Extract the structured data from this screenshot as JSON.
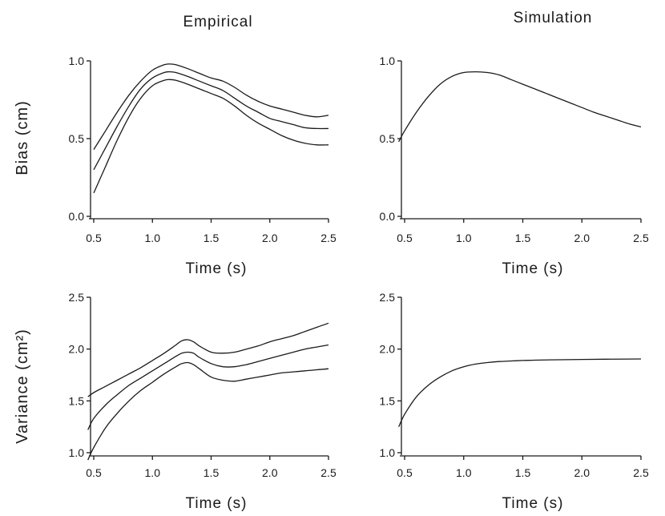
{
  "titles": {
    "left": "Empirical",
    "right": "Simulation"
  },
  "ylabels": {
    "top": "Bias (cm)",
    "bottom": "Variance (cm²)"
  },
  "chart_data": [
    {
      "type": "line",
      "xlabel": "Time (s)",
      "xlim": [
        0.5,
        2.5
      ],
      "ylim": [
        0.0,
        1.0
      ],
      "xticks": [
        "0.5",
        "1.0",
        "1.5",
        "2.0",
        "2.5"
      ],
      "yticks": [
        "0.0",
        "0.5",
        "1.0"
      ],
      "series": [
        {
          "x": [
            0.5,
            0.6,
            0.7,
            0.8,
            0.9,
            1.0,
            1.1,
            1.15,
            1.2,
            1.3,
            1.4,
            1.5,
            1.6,
            1.7,
            1.8,
            1.9,
            2.0,
            2.1,
            2.2,
            2.3,
            2.4,
            2.5
          ],
          "y": [
            0.43,
            0.55,
            0.67,
            0.78,
            0.87,
            0.94,
            0.975,
            0.98,
            0.975,
            0.95,
            0.92,
            0.89,
            0.87,
            0.83,
            0.78,
            0.74,
            0.71,
            0.69,
            0.67,
            0.65,
            0.64,
            0.65
          ]
        },
        {
          "x": [
            0.5,
            0.6,
            0.7,
            0.8,
            0.9,
            1.0,
            1.1,
            1.15,
            1.2,
            1.3,
            1.4,
            1.5,
            1.6,
            1.7,
            1.8,
            1.9,
            2.0,
            2.1,
            2.2,
            2.3,
            2.4,
            2.5
          ],
          "y": [
            0.3,
            0.44,
            0.58,
            0.71,
            0.82,
            0.89,
            0.925,
            0.93,
            0.925,
            0.9,
            0.87,
            0.84,
            0.81,
            0.76,
            0.71,
            0.67,
            0.63,
            0.61,
            0.59,
            0.57,
            0.565,
            0.565
          ]
        },
        {
          "x": [
            0.5,
            0.6,
            0.7,
            0.8,
            0.9,
            1.0,
            1.1,
            1.15,
            1.2,
            1.3,
            1.4,
            1.5,
            1.6,
            1.7,
            1.8,
            1.9,
            2.0,
            2.1,
            2.2,
            2.3,
            2.4,
            2.5
          ],
          "y": [
            0.15,
            0.32,
            0.49,
            0.64,
            0.76,
            0.84,
            0.875,
            0.88,
            0.875,
            0.85,
            0.82,
            0.79,
            0.76,
            0.71,
            0.65,
            0.6,
            0.56,
            0.52,
            0.49,
            0.47,
            0.46,
            0.46
          ]
        }
      ]
    },
    {
      "type": "line",
      "xlabel": "Time (s)",
      "xlim": [
        0.5,
        2.5
      ],
      "ylim": [
        0.0,
        1.0
      ],
      "xticks": [
        "0.5",
        "1.0",
        "1.5",
        "2.0",
        "2.5"
      ],
      "yticks": [
        "0.0",
        "0.5",
        "1.0"
      ],
      "series": [
        {
          "x": [
            0.45,
            0.5,
            0.6,
            0.7,
            0.8,
            0.9,
            1.0,
            1.1,
            1.2,
            1.3,
            1.4,
            1.5,
            1.6,
            1.7,
            1.8,
            1.9,
            2.0,
            2.1,
            2.2,
            2.3,
            2.4,
            2.5
          ],
          "y": [
            0.48,
            0.55,
            0.67,
            0.77,
            0.85,
            0.9,
            0.925,
            0.93,
            0.925,
            0.91,
            0.88,
            0.85,
            0.82,
            0.79,
            0.76,
            0.73,
            0.7,
            0.67,
            0.645,
            0.62,
            0.595,
            0.575
          ]
        }
      ]
    },
    {
      "type": "line",
      "xlabel": "Time (s)",
      "xlim": [
        0.5,
        2.5
      ],
      "ylim": [
        1.0,
        2.5
      ],
      "xticks": [
        "0.5",
        "1.0",
        "1.5",
        "2.0",
        "2.5"
      ],
      "yticks": [
        "1.0",
        "1.5",
        "2.0",
        "2.5"
      ],
      "series": [
        {
          "x": [
            0.45,
            0.5,
            0.6,
            0.7,
            0.8,
            0.9,
            1.0,
            1.1,
            1.2,
            1.25,
            1.3,
            1.35,
            1.4,
            1.5,
            1.6,
            1.7,
            1.8,
            1.9,
            2.0,
            2.1,
            2.2,
            2.3,
            2.4,
            2.5
          ],
          "y": [
            1.54,
            1.58,
            1.64,
            1.7,
            1.76,
            1.82,
            1.89,
            1.96,
            2.04,
            2.08,
            2.09,
            2.07,
            2.03,
            1.97,
            1.96,
            1.97,
            2.0,
            2.03,
            2.07,
            2.1,
            2.13,
            2.17,
            2.21,
            2.25
          ]
        },
        {
          "x": [
            0.45,
            0.5,
            0.6,
            0.7,
            0.8,
            0.9,
            1.0,
            1.1,
            1.2,
            1.25,
            1.3,
            1.35,
            1.4,
            1.5,
            1.6,
            1.7,
            1.8,
            1.9,
            2.0,
            2.1,
            2.2,
            2.3,
            2.4,
            2.5
          ],
          "y": [
            1.22,
            1.33,
            1.46,
            1.56,
            1.65,
            1.72,
            1.79,
            1.86,
            1.93,
            1.96,
            1.97,
            1.96,
            1.92,
            1.86,
            1.83,
            1.83,
            1.85,
            1.88,
            1.91,
            1.94,
            1.97,
            2.0,
            2.02,
            2.04
          ]
        },
        {
          "x": [
            0.45,
            0.5,
            0.6,
            0.7,
            0.8,
            0.9,
            1.0,
            1.1,
            1.2,
            1.25,
            1.3,
            1.35,
            1.4,
            1.5,
            1.6,
            1.7,
            1.8,
            1.9,
            2.0,
            2.1,
            2.2,
            2.3,
            2.4,
            2.5
          ],
          "y": [
            0.93,
            1.05,
            1.24,
            1.38,
            1.5,
            1.6,
            1.68,
            1.76,
            1.83,
            1.86,
            1.87,
            1.85,
            1.81,
            1.73,
            1.7,
            1.69,
            1.71,
            1.73,
            1.75,
            1.77,
            1.78,
            1.79,
            1.8,
            1.81
          ]
        }
      ]
    },
    {
      "type": "line",
      "xlabel": "Time (s)",
      "xlim": [
        0.5,
        2.5
      ],
      "ylim": [
        1.0,
        2.5
      ],
      "xticks": [
        "0.5",
        "1.0",
        "1.5",
        "2.0",
        "2.5"
      ],
      "yticks": [
        "1.0",
        "1.5",
        "2.0",
        "2.5"
      ],
      "series": [
        {
          "x": [
            0.45,
            0.5,
            0.6,
            0.7,
            0.8,
            0.9,
            1.0,
            1.1,
            1.2,
            1.3,
            1.4,
            1.5,
            1.6,
            1.8,
            2.0,
            2.2,
            2.4,
            2.5
          ],
          "y": [
            1.25,
            1.37,
            1.54,
            1.65,
            1.73,
            1.79,
            1.83,
            1.855,
            1.87,
            1.88,
            1.885,
            1.89,
            1.893,
            1.897,
            1.9,
            1.902,
            1.904,
            1.905
          ]
        }
      ]
    }
  ]
}
